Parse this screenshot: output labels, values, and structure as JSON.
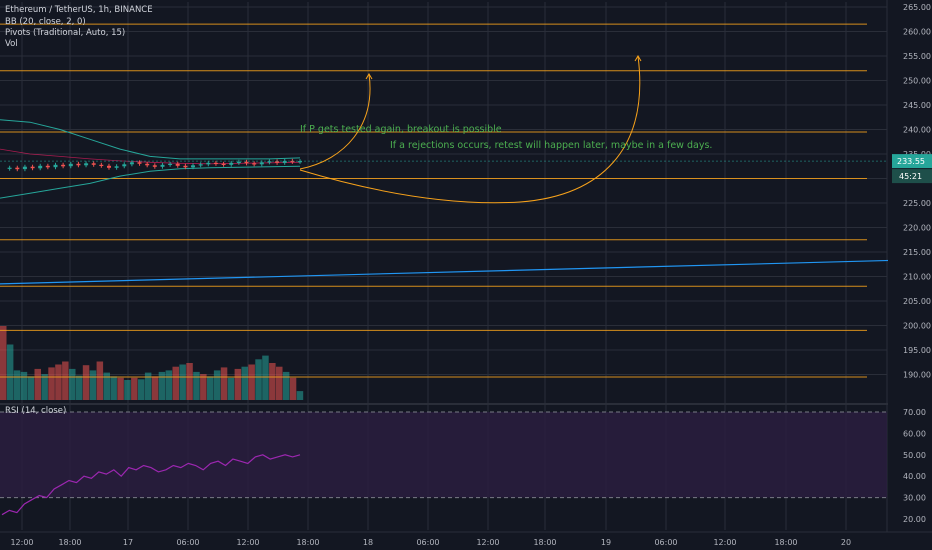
{
  "header": {
    "symbol_line": "Ethereum / TetherUS, 1h, BINANCE",
    "indicators": [
      "BB (20, close, 2, 0)",
      "Pivots (Traditional, Auto, 15)",
      "Vol"
    ]
  },
  "rsi_header": "RSI (14, close)",
  "price_badge": "233.55",
  "countdown_badge": "45:21",
  "annotations": [
    "If P gets tested again, breakout is possible",
    "If a rejections occurs, retest will happen later, maybe in a few days."
  ],
  "colors": {
    "background": "#131722",
    "grid": "#2a2e39",
    "pivot_line": "#f7a21b",
    "trend_line": "#2196f3",
    "annotation_text": "#4caf50",
    "arrow": "#f7a21b",
    "bollinger": "#26a69a",
    "rsi_line": "#9c27b0",
    "rsi_band": "#2a1d3e",
    "up": "#26a69a",
    "down": "#ef5350",
    "badge": "#26a69a"
  },
  "chart_data": [
    {
      "type": "line",
      "panel": "price",
      "y_ticks": [
        "265.00",
        "260.00",
        "255.00",
        "250.00",
        "245.00",
        "240.00",
        "235.00",
        "230.00",
        "225.00",
        "220.00",
        "215.00",
        "210.00",
        "205.00",
        "200.00",
        "195.00",
        "190.00"
      ],
      "x_ticks": [
        "12:00",
        "18:00",
        "17",
        "06:00",
        "12:00",
        "18:00",
        "18",
        "06:00",
        "12:00",
        "18:00",
        "19",
        "06:00",
        "12:00",
        "18:00",
        "20"
      ],
      "ylim": [
        186,
        268
      ],
      "pivot_levels": [
        261.5,
        252,
        239.5,
        230,
        217.5,
        208,
        199,
        189.5
      ],
      "trend_line": {
        "start": 208.5,
        "end": 213.5
      },
      "price_series": [
        232.0,
        232.2,
        231.9,
        232.4,
        232.1,
        232.6,
        232.3,
        232.8,
        232.5,
        233.0,
        232.7,
        233.1,
        232.8,
        232.6,
        232.2,
        232.5,
        232.9,
        233.3,
        233.0,
        232.7,
        232.4,
        232.8,
        233.0,
        232.6,
        232.3,
        232.7,
        232.9,
        233.2,
        233.0,
        232.8,
        233.2,
        233.4,
        233.1,
        232.9,
        233.3,
        233.5,
        233.2,
        233.6,
        233.4,
        233.55
      ],
      "bb_upper": [
        242,
        241.5,
        240,
        238,
        236,
        234.5,
        234,
        234,
        234,
        234,
        234.2
      ],
      "bb_lower": [
        226,
        227,
        228,
        229,
        230.5,
        231.5,
        232,
        232.2,
        232.3,
        232.4,
        232.5
      ],
      "bb_basis": [
        236,
        235,
        234.5,
        234,
        233.6,
        233.3,
        233.1,
        233.0,
        233.1,
        233.2,
        233.3
      ],
      "last_price": 233.55
    },
    {
      "type": "bar",
      "panel": "volume",
      "values": [
        100,
        75,
        40,
        38,
        32,
        42,
        35,
        44,
        48,
        52,
        42,
        33,
        47,
        40,
        52,
        37,
        32,
        30,
        27,
        30,
        28,
        37,
        32,
        38,
        40,
        45,
        48,
        50,
        38,
        35,
        32,
        40,
        44,
        30,
        42,
        45,
        48,
        55,
        60,
        50,
        45,
        38,
        30,
        12
      ],
      "up_flags": [
        false,
        true,
        true,
        true,
        true,
        false,
        true,
        false,
        false,
        false,
        true,
        true,
        false,
        true,
        false,
        true,
        true,
        false,
        true,
        false,
        true,
        true,
        false,
        true,
        true,
        false,
        true,
        false,
        true,
        false,
        true,
        true,
        false,
        true,
        false,
        true,
        false,
        true,
        true,
        false,
        false,
        true,
        false,
        true
      ]
    },
    {
      "type": "line",
      "panel": "rsi",
      "y_ticks": [
        "70.00",
        "60.00",
        "50.00",
        "40.00",
        "30.00",
        "20.00"
      ],
      "ylim": [
        15,
        75
      ],
      "bands": [
        30,
        70
      ],
      "values": [
        22,
        24,
        23,
        27,
        29,
        31,
        30,
        34,
        36,
        38,
        37,
        40,
        39,
        42,
        41,
        43,
        40,
        44,
        43,
        45,
        44,
        42,
        43,
        45,
        44,
        46,
        45,
        43,
        46,
        47,
        45,
        48,
        47,
        46,
        49,
        50,
        48,
        49,
        50,
        49,
        50
      ]
    }
  ]
}
